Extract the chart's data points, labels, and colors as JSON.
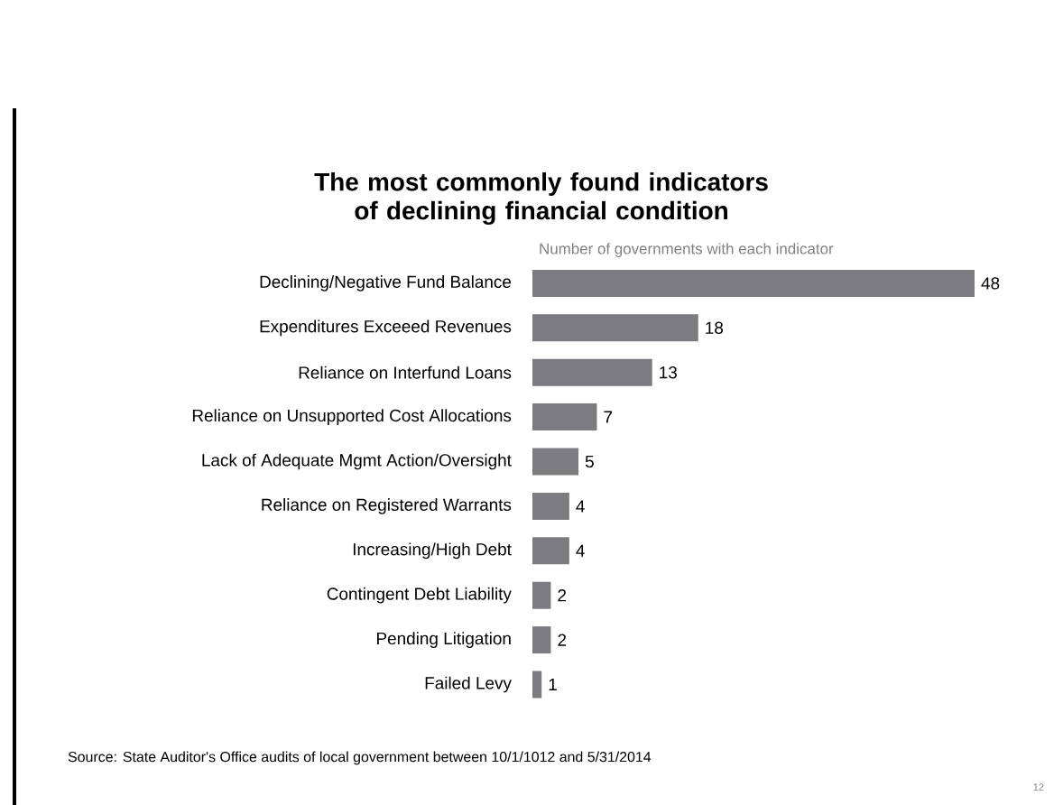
{
  "chart_data": {
    "type": "bar",
    "orientation": "horizontal",
    "title": "The most commonly found indicators of declining financial condition",
    "xlabel": "Number of governments with each indicator",
    "categories": [
      "Declining/Negative Fund Balance",
      "Expenditures Exceeed Revenues",
      "Reliance on Interfund Loans",
      "Reliance on Unsupported Cost Allocations",
      "Lack of Adequate Mgmt Action/Oversight",
      "Reliance on Registered Warrants",
      "Increasing/High Debt",
      "Contingent Debt Liability",
      "Pending Litigation",
      "Failed Levy"
    ],
    "values": [
      48,
      18,
      13,
      7,
      5,
      4,
      4,
      2,
      2,
      1
    ],
    "color": "#7b7b80",
    "data_labels": true,
    "annotations": [
      "Source: State Auditor's Office audits of local government between 10/1/1012 and 5/31/2014",
      "12"
    ]
  }
}
